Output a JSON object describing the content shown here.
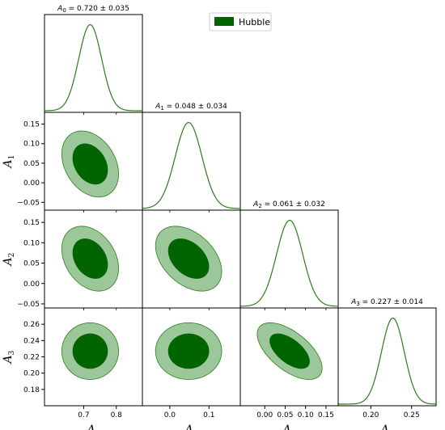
{
  "chart_data": {
    "type": "corner",
    "series": [
      {
        "name": "Hubble"
      }
    ],
    "colors": {
      "line": "#2e7d1b",
      "outer": "#9cc79a",
      "inner": "#006400",
      "outer_edge": "#2e7d1b"
    },
    "params": [
      {
        "symbol": "A",
        "sub": "0",
        "mean": 0.72,
        "sigma": 0.035,
        "title_value": "0.720 ± 0.035",
        "range": [
          0.58,
          0.88
        ],
        "ticks": [
          {
            "v": 0.7,
            "label": "0.7"
          },
          {
            "v": 0.8,
            "label": "0.8"
          }
        ]
      },
      {
        "symbol": "A",
        "sub": "1",
        "mean": 0.048,
        "sigma": 0.034,
        "title_value": "0.048 ± 0.034",
        "range": [
          -0.07,
          0.18
        ],
        "ticks": [
          {
            "v": 0.0,
            "label": "0.0"
          },
          {
            "v": 0.1,
            "label": "0.1"
          }
        ]
      },
      {
        "symbol": "A",
        "sub": "2",
        "mean": 0.061,
        "sigma": 0.032,
        "title_value": "0.061 ± 0.032",
        "range": [
          -0.06,
          0.18
        ],
        "ticks": [
          {
            "v": 0.0,
            "label": "0.00"
          },
          {
            "v": 0.05,
            "label": "0.05"
          },
          {
            "v": 0.1,
            "label": "0.10"
          },
          {
            "v": 0.15,
            "label": "0.15"
          }
        ]
      },
      {
        "symbol": "A",
        "sub": "3",
        "mean": 0.227,
        "sigma": 0.014,
        "title_value": "0.227 ± 0.014",
        "range": [
          0.16,
          0.28
        ],
        "ticks": [
          {
            "v": 0.2,
            "label": "0.20"
          },
          {
            "v": 0.25,
            "label": "0.25"
          }
        ]
      }
    ],
    "y_ticks": {
      "1": [
        {
          "v": -0.05,
          "label": "−0.05"
        },
        {
          "v": 0.0,
          "label": "0.00"
        },
        {
          "v": 0.05,
          "label": "0.05"
        },
        {
          "v": 0.1,
          "label": "0.10"
        },
        {
          "v": 0.15,
          "label": "0.15"
        }
      ],
      "2": [
        {
          "v": -0.05,
          "label": "−0.05"
        },
        {
          "v": 0.0,
          "label": "0.00"
        },
        {
          "v": 0.05,
          "label": "0.05"
        },
        {
          "v": 0.1,
          "label": "0.10"
        },
        {
          "v": 0.15,
          "label": "0.15"
        }
      ],
      "3": [
        {
          "v": 0.18,
          "label": "0.18"
        },
        {
          "v": 0.2,
          "label": "0.20"
        },
        {
          "v": 0.22,
          "label": "0.22"
        },
        {
          "v": 0.24,
          "label": "0.24"
        },
        {
          "v": 0.26,
          "label": "0.26"
        }
      ]
    },
    "correlations": [
      {
        "x": 0,
        "y": 1,
        "rho": -0.3
      },
      {
        "x": 0,
        "y": 2,
        "rho": -0.3
      },
      {
        "x": 1,
        "y": 2,
        "rho": -0.4
      },
      {
        "x": 0,
        "y": 3,
        "rho": 0.0
      },
      {
        "x": 1,
        "y": 3,
        "rho": 0.0
      },
      {
        "x": 2,
        "y": 3,
        "rho": -0.6
      }
    ]
  }
}
